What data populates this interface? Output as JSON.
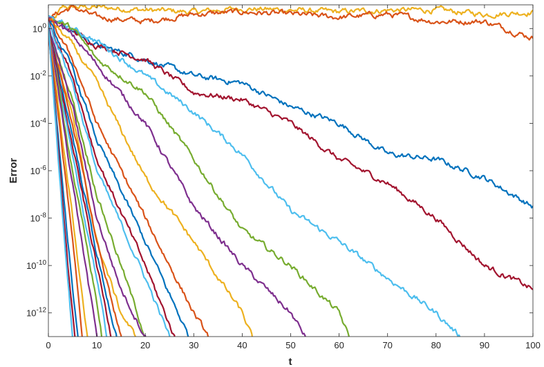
{
  "chart_data": {
    "type": "line",
    "title": "",
    "xlabel": "t",
    "ylabel": "Error",
    "xlim": [
      0,
      100
    ],
    "ylim": [
      1e-13,
      10
    ],
    "y_scale": "log",
    "grid": false,
    "box": true,
    "x_ticks": [
      "0",
      "10",
      "20",
      "30",
      "40",
      "50",
      "60",
      "70",
      "80",
      "90",
      "100"
    ],
    "y_ticks": [
      {
        "base": "10",
        "exp": "0",
        "value": 1
      },
      {
        "base": "10",
        "exp": "-2",
        "value": 0.01
      },
      {
        "base": "10",
        "exp": "-4",
        "value": 0.0001
      },
      {
        "base": "10",
        "exp": "-6",
        "value": 1e-06
      },
      {
        "base": "10",
        "exp": "-8",
        "value": 1e-08
      },
      {
        "base": "10",
        "exp": "-10",
        "value": 1e-10
      },
      {
        "base": "10",
        "exp": "-12",
        "value": 1e-12
      }
    ],
    "series": [
      {
        "color": "#EDB120",
        "x": [
          0,
          3,
          10,
          20,
          30,
          40,
          50,
          60,
          70,
          80,
          90,
          100
        ],
        "y": [
          1,
          8,
          8,
          6,
          5,
          7,
          6,
          5,
          6,
          6,
          4,
          5
        ]
      },
      {
        "color": "#D95319",
        "x": [
          0,
          5,
          10,
          20,
          30,
          40,
          50,
          60,
          70,
          80,
          90,
          100
        ],
        "y": [
          3,
          8,
          3,
          2,
          4,
          5,
          4,
          3,
          4,
          2,
          2,
          0.4
        ]
      },
      {
        "color": "#0072BD",
        "x": [
          0,
          10,
          20,
          30,
          40,
          50,
          60,
          70,
          80,
          90,
          100
        ],
        "y": [
          3,
          0.2,
          0.05,
          0.01,
          0.005,
          0.0005,
          0.0001,
          5e-06,
          3e-06,
          5e-07,
          3e-08
        ]
      },
      {
        "color": "#A2142F",
        "x": [
          0,
          10,
          20,
          30,
          40,
          50,
          60,
          70,
          80,
          90,
          100
        ],
        "y": [
          3,
          0.2,
          0.05,
          0.002,
          0.001,
          0.0001,
          3e-06,
          3e-07,
          1e-08,
          1e-10,
          1e-11
        ]
      },
      {
        "color": "#4DBEEE",
        "x": [
          0,
          10,
          20,
          30,
          40,
          50,
          60,
          70,
          80,
          85
        ],
        "y": [
          3,
          0.3,
          0.01,
          0.0003,
          5e-06,
          2e-08,
          1e-09,
          3e-11,
          1e-12,
          1e-13
        ]
      },
      {
        "color": "#77AC30",
        "x": [
          0,
          5,
          10,
          20,
          30,
          40,
          50,
          60,
          62
        ],
        "y": [
          3,
          1,
          0.05,
          0.002,
          3e-06,
          3e-09,
          1e-10,
          1e-12,
          1e-13
        ]
      },
      {
        "color": "#7E2F8E",
        "x": [
          0,
          5,
          10,
          20,
          30,
          40,
          50,
          53
        ],
        "y": [
          3,
          0.5,
          0.03,
          0.0001,
          3e-08,
          1e-10,
          1e-12,
          1e-13
        ]
      },
      {
        "color": "#EDB120",
        "x": [
          0,
          5,
          10,
          20,
          30,
          40,
          42
        ],
        "y": [
          3,
          0.2,
          0.005,
          5e-07,
          1e-09,
          1e-12,
          1e-13
        ]
      },
      {
        "color": "#D95319",
        "x": [
          0,
          5,
          10,
          20,
          30,
          33
        ],
        "y": [
          3,
          0.05,
          0.0001,
          1e-08,
          1e-12,
          1e-13
        ]
      },
      {
        "color": "#0072BD",
        "x": [
          0,
          5,
          10,
          20,
          29
        ],
        "y": [
          2,
          0.02,
          2e-05,
          1e-09,
          1e-13
        ]
      },
      {
        "color": "#A2142F",
        "x": [
          0,
          5,
          10,
          20,
          26
        ],
        "y": [
          2,
          0.01,
          3e-06,
          1e-10,
          1e-13
        ]
      },
      {
        "color": "#4DBEEE",
        "x": [
          0,
          5,
          10,
          20,
          25
        ],
        "y": [
          2,
          0.005,
          1e-06,
          3e-11,
          1e-13
        ]
      },
      {
        "color": "#77AC30",
        "x": [
          0,
          5,
          10,
          20
        ],
        "y": [
          1,
          0.001,
          1e-07,
          1e-13
        ]
      },
      {
        "color": "#7E2F8E",
        "x": [
          0,
          5,
          10,
          15,
          20
        ],
        "y": [
          1,
          0.0005,
          1e-08,
          1e-11,
          1e-13
        ]
      },
      {
        "color": "#EDB120",
        "x": [
          0,
          5,
          10,
          15,
          18
        ],
        "y": [
          1,
          0.0002,
          1e-09,
          1e-12,
          1e-13
        ]
      },
      {
        "color": "#D95319",
        "x": [
          0,
          5,
          10,
          15
        ],
        "y": [
          1,
          0.0001,
          1e-09,
          1e-13
        ]
      },
      {
        "color": "#0072BD",
        "x": [
          0,
          5,
          10,
          14
        ],
        "y": [
          1,
          3e-05,
          3e-10,
          1e-13
        ]
      },
      {
        "color": "#A2142F",
        "x": [
          0,
          5,
          10,
          13
        ],
        "y": [
          1,
          1e-05,
          1e-10,
          1e-13
        ]
      },
      {
        "color": "#4DBEEE",
        "x": [
          0,
          5,
          10,
          12
        ],
        "y": [
          1,
          3e-06,
          3e-11,
          1e-13
        ]
      },
      {
        "color": "#77AC30",
        "x": [
          0,
          5,
          10,
          11
        ],
        "y": [
          1,
          1e-06,
          3e-12,
          1e-13
        ]
      },
      {
        "color": "#7E2F8E",
        "x": [
          0,
          5,
          10
        ],
        "y": [
          1,
          3e-07,
          1e-13
        ]
      },
      {
        "color": "#EDB120",
        "x": [
          0,
          5,
          8
        ],
        "y": [
          1,
          1e-08,
          1e-13
        ]
      },
      {
        "color": "#D95319",
        "x": [
          0,
          5,
          7
        ],
        "y": [
          1,
          1e-09,
          1e-13
        ]
      },
      {
        "color": "#0072BD",
        "x": [
          0,
          4,
          6
        ],
        "y": [
          1,
          1e-09,
          1e-13
        ]
      },
      {
        "color": "#A2142F",
        "x": [
          0,
          4,
          5.5
        ],
        "y": [
          1,
          1e-10,
          1e-13
        ]
      },
      {
        "color": "#4DBEEE",
        "x": [
          0,
          3,
          5
        ],
        "y": [
          1,
          1e-08,
          1e-13
        ]
      }
    ]
  }
}
